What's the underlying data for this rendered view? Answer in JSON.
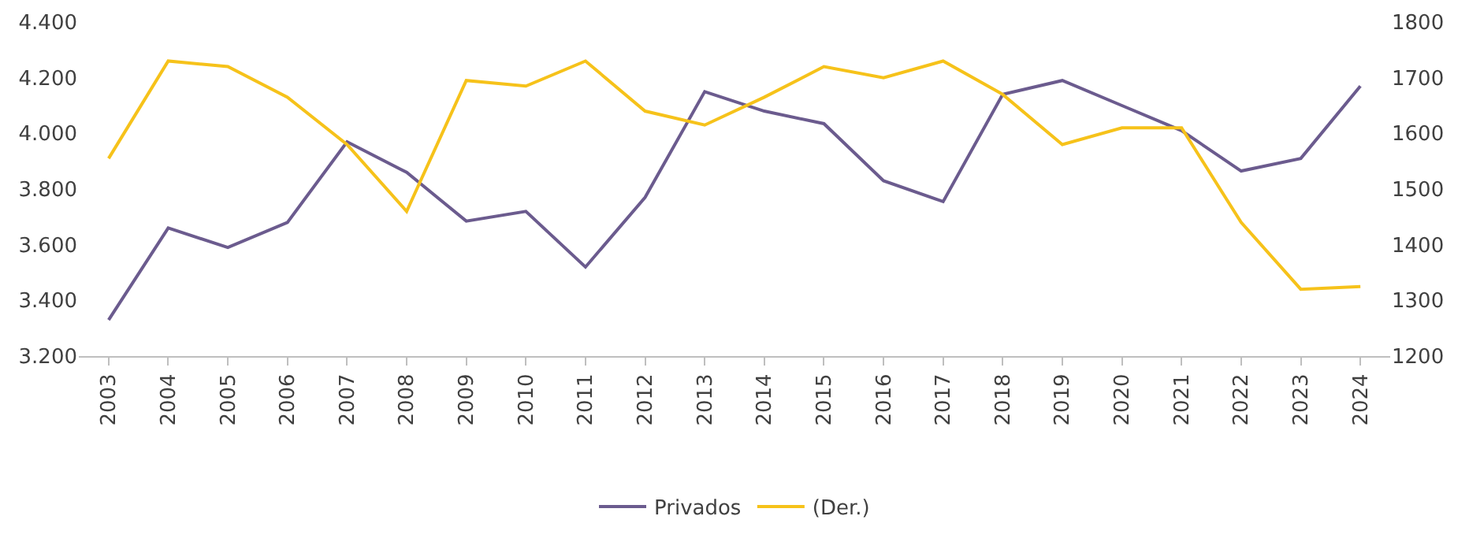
{
  "chart_data": {
    "type": "line",
    "categories": [
      "2003",
      "2004",
      "2005",
      "2006",
      "2007",
      "2008",
      "2009",
      "2010",
      "2011",
      "2012",
      "2013",
      "2014",
      "2015",
      "2016",
      "2017",
      "2018",
      "2019",
      "2020",
      "2021",
      "2022",
      "2023",
      "2024"
    ],
    "series": [
      {
        "name": "Privados",
        "color": "#6b5b8e",
        "values": [
          3330,
          3660,
          3590,
          3680,
          3970,
          3860,
          3685,
          3720,
          3520,
          3770,
          4150,
          4080,
          4035,
          3830,
          3755,
          4140,
          4190,
          4100,
          4010,
          3865,
          3910,
          4170
        ]
      },
      {
        "name": "(Der.)",
        "color": "#f6c21a",
        "axis": "y2",
        "values": [
          1555,
          1730,
          1720,
          1665,
          1580,
          1460,
          1695,
          1685,
          1730,
          1640,
          1615,
          1665,
          1720,
          1700,
          1730,
          1670,
          1580,
          1610,
          1610,
          1440,
          1320,
          1325
        ]
      }
    ],
    "ylim": [
      3200,
      4400
    ],
    "yticks": [
      {
        "value": 3200,
        "label": "3.200"
      },
      {
        "value": 3400,
        "label": "3.400"
      },
      {
        "value": 3600,
        "label": "3.600"
      },
      {
        "value": 3800,
        "label": "3.800"
      },
      {
        "value": 4000,
        "label": "4.000"
      },
      {
        "value": 4200,
        "label": "4.200"
      },
      {
        "value": 4400,
        "label": "4.400"
      }
    ],
    "y2lim": [
      1200,
      1800
    ],
    "y2ticks": [
      1200,
      1300,
      1400,
      1500,
      1600,
      1700,
      1800
    ],
    "legend": "bottom",
    "marker": "none",
    "line_style": "solid"
  }
}
